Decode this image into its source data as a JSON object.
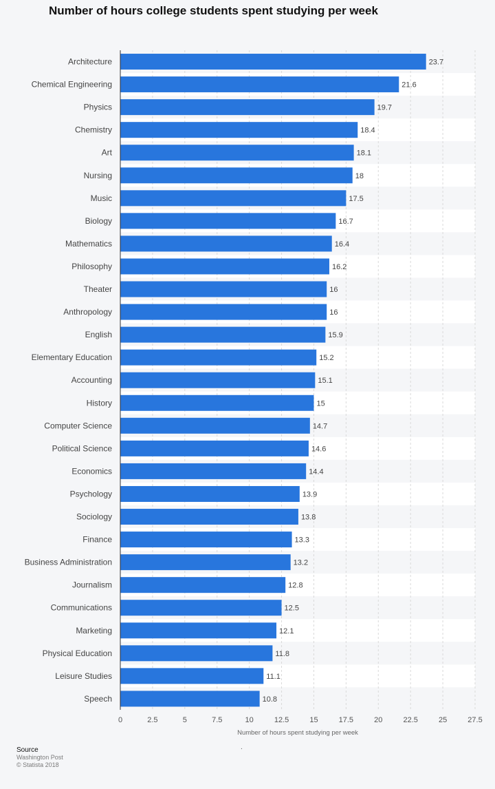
{
  "chart_data": {
    "type": "bar",
    "orientation": "horizontal",
    "title": "Number of hours college students spent studying per week",
    "xlabel": "Number of hours spent studying per week",
    "ylabel": "",
    "xlim": [
      0,
      27.5
    ],
    "ticks": [
      "0",
      "2.5",
      "5",
      "7.5",
      "10",
      "12.5",
      "15",
      "17.5",
      "20",
      "22.5",
      "25",
      "27.5"
    ],
    "categories": [
      "Architecture",
      "Chemical Engineering",
      "Physics",
      "Chemistry",
      "Art",
      "Nursing",
      "Music",
      "Biology",
      "Mathematics",
      "Philosophy",
      "Theater",
      "Anthropology",
      "English",
      "Elementary Education",
      "Accounting",
      "History",
      "Computer Science",
      "Political Science",
      "Economics",
      "Psychology",
      "Sociology",
      "Finance",
      "Business Administration",
      "Journalism",
      "Communications",
      "Marketing",
      "Physical Education",
      "Leisure Studies",
      "Speech"
    ],
    "values": [
      23.7,
      21.6,
      19.7,
      18.4,
      18.1,
      18,
      17.5,
      16.7,
      16.4,
      16.2,
      16,
      16,
      15.9,
      15.2,
      15.1,
      15,
      14.7,
      14.6,
      14.4,
      13.9,
      13.8,
      13.3,
      13.2,
      12.8,
      12.5,
      12.1,
      11.8,
      11.1,
      10.8
    ],
    "bar_color": "#2876dd",
    "grid": true
  },
  "footer": {
    "source_heading": "Source",
    "source_name": "Washington Post",
    "copyright": "© Statista 2018"
  },
  "stray_mark": "."
}
